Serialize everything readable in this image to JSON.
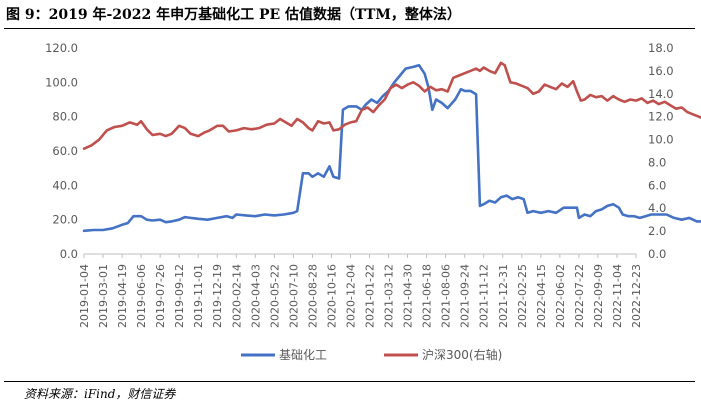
{
  "title": "图 9：2019 年-2022 年申万基础化工 PE 估值数据（TTM，整体法）",
  "source": "资料来源：iFind，财信证券",
  "chart_data": {
    "type": "line",
    "title": "图 9：2019 年-2022 年申万基础化工 PE 估值数据（TTM，整体法）",
    "left_axis": {
      "ylim": [
        0,
        120
      ],
      "ticks": [
        "0.0",
        "20.0",
        "40.0",
        "60.0",
        "80.0",
        "100.0",
        "120.0"
      ]
    },
    "right_axis": {
      "ylim": [
        0,
        18
      ],
      "ticks": [
        "0.0",
        "2.0",
        "4.0",
        "6.0",
        "8.0",
        "10.0",
        "12.0",
        "14.0",
        "16.0",
        "18.0"
      ]
    },
    "x_ticks": [
      "2019-01-04",
      "2019-03-01",
      "2019-04-19",
      "2019-06-06",
      "2019-07-26",
      "2019-09-12",
      "2019-11-01",
      "2019-12-19",
      "2020-02-14",
      "2020-04-03",
      "2020-05-22",
      "2020-07-10",
      "2020-08-28",
      "2020-10-16",
      "2020-12-04",
      "2021-01-22",
      "2021-03-12",
      "2021-04-30",
      "2021-06-18",
      "2021-08-06",
      "2021-09-24",
      "2021-11-12",
      "2021-12-31",
      "2022-02-25",
      "2022-04-15",
      "2022-06-02",
      "2022-07-22",
      "2022-09-09",
      "2022-11-04",
      "2022-12-23"
    ],
    "legend_position": "bottom",
    "grid": false,
    "series": [
      {
        "name": "基础化工",
        "axis": "left",
        "color": "#4472C4",
        "values": [
          [
            0,
            13.5
          ],
          [
            0.5,
            14
          ],
          [
            1,
            14
          ],
          [
            1.5,
            15
          ],
          [
            2,
            17
          ],
          [
            2.3,
            18
          ],
          [
            2.6,
            22
          ],
          [
            3,
            22
          ],
          [
            3.3,
            20
          ],
          [
            3.6,
            19.5
          ],
          [
            4,
            20
          ],
          [
            4.3,
            18.5
          ],
          [
            4.6,
            19
          ],
          [
            5,
            20
          ],
          [
            5.3,
            21.5
          ],
          [
            5.6,
            21
          ],
          [
            6,
            20.5
          ],
          [
            6.5,
            20
          ],
          [
            7,
            21
          ],
          [
            7.5,
            22
          ],
          [
            7.8,
            21
          ],
          [
            8,
            23
          ],
          [
            8.5,
            22.5
          ],
          [
            9,
            22
          ],
          [
            9.5,
            23
          ],
          [
            10,
            22.5
          ],
          [
            10.5,
            23
          ],
          [
            11,
            24
          ],
          [
            11.2,
            25
          ],
          [
            11.5,
            47
          ],
          [
            11.8,
            47
          ],
          [
            12,
            45
          ],
          [
            12.3,
            47
          ],
          [
            12.6,
            45
          ],
          [
            12.9,
            51
          ],
          [
            13.1,
            45
          ],
          [
            13.4,
            44
          ],
          [
            13.6,
            84
          ],
          [
            13.9,
            86
          ],
          [
            14.3,
            86
          ],
          [
            14.6,
            84
          ],
          [
            14.8,
            87
          ],
          [
            15.1,
            90
          ],
          [
            15.4,
            88
          ],
          [
            15.7,
            92
          ],
          [
            16,
            95
          ],
          [
            16.3,
            100
          ],
          [
            16.6,
            104
          ],
          [
            16.9,
            108
          ],
          [
            17.3,
            109
          ],
          [
            17.6,
            110
          ],
          [
            17.9,
            105
          ],
          [
            18.1,
            97
          ],
          [
            18.3,
            84
          ],
          [
            18.5,
            90
          ],
          [
            18.8,
            88
          ],
          [
            19.1,
            85
          ],
          [
            19.5,
            90
          ],
          [
            19.8,
            96
          ],
          [
            20,
            95
          ],
          [
            20.3,
            95
          ],
          [
            20.6,
            93
          ],
          [
            20.8,
            28
          ],
          [
            21,
            29
          ],
          [
            21.3,
            31
          ],
          [
            21.6,
            30
          ],
          [
            21.9,
            33
          ],
          [
            22.2,
            34
          ],
          [
            22.5,
            32
          ],
          [
            22.8,
            33
          ],
          [
            23.1,
            32
          ],
          [
            23.3,
            24
          ],
          [
            23.6,
            25
          ],
          [
            24,
            24
          ],
          [
            24.4,
            25
          ],
          [
            24.8,
            24
          ],
          [
            25.2,
            27
          ],
          [
            25.6,
            27
          ],
          [
            25.9,
            27
          ],
          [
            26,
            21
          ],
          [
            26.3,
            23
          ],
          [
            26.6,
            22
          ],
          [
            26.9,
            25
          ],
          [
            27.2,
            26
          ],
          [
            27.5,
            28
          ],
          [
            27.8,
            29
          ],
          [
            28.1,
            27
          ],
          [
            28.3,
            23
          ],
          [
            28.6,
            22
          ],
          [
            28.9,
            22
          ],
          [
            29.2,
            21
          ],
          [
            29.5,
            22
          ],
          [
            29.8,
            23
          ],
          [
            30.2,
            23
          ],
          [
            30.6,
            23
          ],
          [
            31,
            21
          ],
          [
            31.4,
            20
          ],
          [
            31.8,
            21
          ],
          [
            32.2,
            19
          ],
          [
            32.6,
            19
          ],
          [
            33,
            18
          ],
          [
            33.4,
            16
          ],
          [
            33.8,
            16
          ],
          [
            34.2,
            17
          ],
          [
            34.6,
            17
          ],
          [
            35,
            18
          ],
          [
            35.4,
            18
          ],
          [
            35.8,
            17
          ],
          [
            36.2,
            17
          ],
          [
            36.6,
            17
          ],
          [
            37,
            16
          ],
          [
            37.4,
            17
          ],
          [
            37.8,
            16
          ],
          [
            38.2,
            17
          ],
          [
            38.6,
            17
          ],
          [
            39,
            17
          ],
          [
            39.4,
            17
          ],
          [
            39.8,
            18
          ],
          [
            40.2,
            17
          ],
          [
            40.6,
            16.5
          ]
        ]
      },
      {
        "name": "沪深300(右轴)",
        "axis": "right",
        "color": "#C0504D",
        "values": [
          [
            0,
            9.2
          ],
          [
            0.4,
            9.5
          ],
          [
            0.8,
            10
          ],
          [
            1.2,
            10.8
          ],
          [
            1.6,
            11.1
          ],
          [
            2,
            11.2
          ],
          [
            2.4,
            11.5
          ],
          [
            2.8,
            11.3
          ],
          [
            3,
            11.6
          ],
          [
            3.3,
            10.9
          ],
          [
            3.6,
            10.4
          ],
          [
            4,
            10.5
          ],
          [
            4.3,
            10.3
          ],
          [
            4.6,
            10.5
          ],
          [
            5,
            11.2
          ],
          [
            5.3,
            11
          ],
          [
            5.6,
            10.5
          ],
          [
            6,
            10.3
          ],
          [
            6.3,
            10.6
          ],
          [
            6.6,
            10.8
          ],
          [
            7,
            11.2
          ],
          [
            7.3,
            11.2
          ],
          [
            7.6,
            10.7
          ],
          [
            8,
            10.8
          ],
          [
            8.4,
            11
          ],
          [
            8.8,
            10.9
          ],
          [
            9.2,
            11
          ],
          [
            9.6,
            11.3
          ],
          [
            10,
            11.4
          ],
          [
            10.3,
            11.8
          ],
          [
            10.6,
            11.5
          ],
          [
            10.9,
            11.2
          ],
          [
            11.2,
            11.8
          ],
          [
            11.5,
            11.5
          ],
          [
            11.8,
            11
          ],
          [
            12,
            10.8
          ],
          [
            12.3,
            11.6
          ],
          [
            12.6,
            11.4
          ],
          [
            12.9,
            11.5
          ],
          [
            13.1,
            10.8
          ],
          [
            13.4,
            10.9
          ],
          [
            13.7,
            11.3
          ],
          [
            14,
            11.5
          ],
          [
            14.3,
            11.6
          ],
          [
            14.6,
            12.6
          ],
          [
            14.9,
            12.8
          ],
          [
            15.2,
            12.4
          ],
          [
            15.5,
            13
          ],
          [
            15.8,
            13.5
          ],
          [
            16.1,
            14.5
          ],
          [
            16.4,
            14.8
          ],
          [
            16.7,
            14.5
          ],
          [
            17,
            14.8
          ],
          [
            17.3,
            15
          ],
          [
            17.6,
            14.7
          ],
          [
            17.9,
            14.2
          ],
          [
            18.2,
            14.6
          ],
          [
            18.5,
            14.3
          ],
          [
            18.8,
            14.4
          ],
          [
            19.1,
            14.2
          ],
          [
            19.4,
            15.4
          ],
          [
            19.7,
            15.6
          ],
          [
            20,
            15.8
          ],
          [
            20.3,
            16
          ],
          [
            20.6,
            16.2
          ],
          [
            20.8,
            16
          ],
          [
            21,
            16.3
          ],
          [
            21.3,
            16
          ],
          [
            21.6,
            15.8
          ],
          [
            21.9,
            16.7
          ],
          [
            22.1,
            16.5
          ],
          [
            22.4,
            15
          ],
          [
            22.7,
            14.9
          ],
          [
            23,
            14.7
          ],
          [
            23.3,
            14.5
          ],
          [
            23.6,
            14
          ],
          [
            23.9,
            14.2
          ],
          [
            24.2,
            14.8
          ],
          [
            24.5,
            14.6
          ],
          [
            24.8,
            14.4
          ],
          [
            25.1,
            14.9
          ],
          [
            25.4,
            14.6
          ],
          [
            25.7,
            15.1
          ],
          [
            25.9,
            14.2
          ],
          [
            26.1,
            13.4
          ],
          [
            26.3,
            13.5
          ],
          [
            26.6,
            13.9
          ],
          [
            26.9,
            13.7
          ],
          [
            27.2,
            13.8
          ],
          [
            27.5,
            13.4
          ],
          [
            27.8,
            13.8
          ],
          [
            28.1,
            13.5
          ],
          [
            28.4,
            13.3
          ],
          [
            28.7,
            13.5
          ],
          [
            29,
            13.4
          ],
          [
            29.3,
            13.6
          ],
          [
            29.6,
            13.2
          ],
          [
            29.9,
            13.4
          ],
          [
            30.2,
            13.1
          ],
          [
            30.5,
            13.3
          ],
          [
            30.8,
            13
          ],
          [
            31.1,
            12.7
          ],
          [
            31.4,
            12.8
          ],
          [
            31.7,
            12.4
          ],
          [
            32,
            12.2
          ],
          [
            32.3,
            12
          ],
          [
            32.6,
            11.8
          ],
          [
            32.9,
            11.7
          ],
          [
            33.2,
            11.6
          ],
          [
            33.5,
            11.9
          ],
          [
            33.8,
            11.4
          ],
          [
            34.1,
            11.7
          ],
          [
            34.4,
            11.8
          ],
          [
            34.7,
            12.2
          ],
          [
            35,
            12.3
          ],
          [
            35.3,
            12
          ],
          [
            35.6,
            11.6
          ],
          [
            35.9,
            11.4
          ],
          [
            36.2,
            11.2
          ],
          [
            36.5,
            11.4
          ],
          [
            36.8,
            11.1
          ],
          [
            37.1,
            11.4
          ],
          [
            37.4,
            11
          ],
          [
            37.7,
            10.8
          ],
          [
            38,
            10.6
          ],
          [
            38.3,
            10.5
          ],
          [
            38.6,
            10.1
          ],
          [
            38.9,
            10.5
          ],
          [
            39.2,
            10.6
          ],
          [
            39.5,
            10.6
          ],
          [
            39.8,
            11
          ],
          [
            40.1,
            10.6
          ],
          [
            40.4,
            10.9
          ],
          [
            40.7,
            10.8
          ]
        ]
      }
    ]
  }
}
